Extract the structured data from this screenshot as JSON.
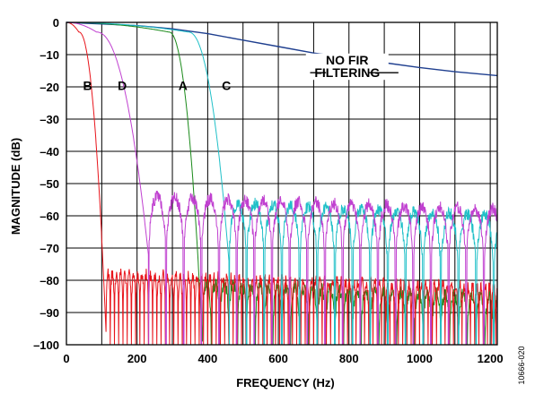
{
  "chart_data": {
    "type": "line",
    "xlabel": "FREQUENCY (Hz)",
    "ylabel": "MAGNITUDE (dB)",
    "xlim": [
      0,
      1220
    ],
    "ylim": [
      -100,
      0
    ],
    "grid": true,
    "x_ticks": [
      "0",
      "200",
      "400",
      "600",
      "800",
      "1000",
      "1200"
    ],
    "y_ticks": [
      "0",
      "–10",
      "–20",
      "–30",
      "–40",
      "–50",
      "–60",
      "–70",
      "–80",
      "–90",
      "–100"
    ],
    "figure_id": "10666-020",
    "annotations": [
      {
        "text": "NO FIR",
        "x": 795,
        "y": -13
      },
      {
        "text": "FILTERING",
        "x": 795,
        "y": -17
      },
      {
        "text": "B",
        "x": 60,
        "y": -21
      },
      {
        "text": "D",
        "x": 158,
        "y": -21
      },
      {
        "text": "A",
        "x": 330,
        "y": -21
      },
      {
        "text": "C",
        "x": 453,
        "y": -21
      }
    ],
    "series": [
      {
        "name": "NO FIR FILTERING",
        "color": "#1f3f8f",
        "kind": "smooth",
        "points": [
          [
            0,
            0
          ],
          [
            200,
            -1
          ],
          [
            300,
            -2
          ],
          [
            400,
            -3.5
          ],
          [
            500,
            -5.5
          ],
          [
            600,
            -7.5
          ],
          [
            700,
            -9.5
          ],
          [
            800,
            -11
          ],
          [
            900,
            -12.5
          ],
          [
            1000,
            -14
          ],
          [
            1100,
            -15.3
          ],
          [
            1220,
            -16.5
          ]
        ]
      },
      {
        "name": "A",
        "color": "#1a8a1a",
        "kind": "filter",
        "cutoff_hz": 385,
        "knee_hz": 290,
        "lobe_period_hz": 25,
        "lobe_top_db": -79,
        "lobe_depth_db": 18
      },
      {
        "name": "B",
        "color": "#e8141b",
        "kind": "filter",
        "cutoff_hz": 112,
        "knee_hz": 35,
        "lobe_period_hz": 12,
        "lobe_top_db": -76,
        "lobe_depth_db": 17
      },
      {
        "name": "C",
        "color": "#20c0c8",
        "kind": "filter",
        "cutoff_hz": 460,
        "knee_hz": 345,
        "lobe_period_hz": 50,
        "lobe_top_db": -54,
        "lobe_depth_db": 26
      },
      {
        "name": "D",
        "color": "#c040d0",
        "kind": "filter",
        "cutoff_hz": 232,
        "knee_hz": 85,
        "lobe_period_hz": 50,
        "lobe_top_db": -52,
        "lobe_depth_db": 26
      }
    ]
  }
}
